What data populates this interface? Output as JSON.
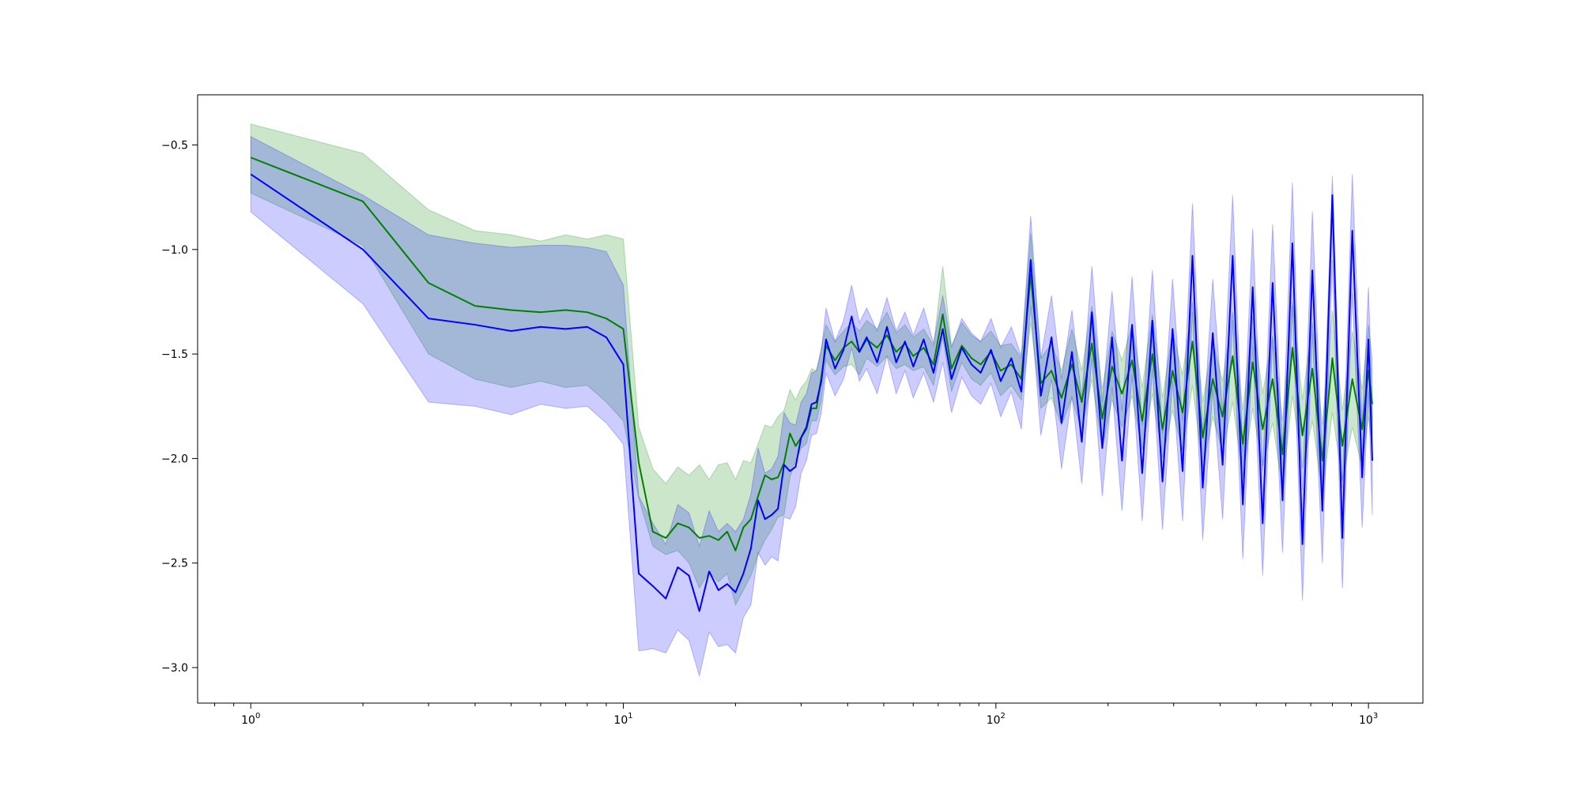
{
  "chart_data": {
    "type": "line",
    "title": "",
    "xlabel": "",
    "ylabel": "",
    "x_scale": "log",
    "xlim": [
      0.72,
      1400
    ],
    "ylim": [
      -3.17,
      -0.26
    ],
    "grid": false,
    "legend": "none",
    "x_ticks": [
      {
        "value": 1,
        "base": "10",
        "exp": "0"
      },
      {
        "value": 10,
        "base": "10",
        "exp": "1"
      },
      {
        "value": 100,
        "base": "10",
        "exp": "2"
      },
      {
        "value": 1000,
        "base": "10",
        "exp": "3"
      }
    ],
    "y_ticks": [
      {
        "value": -0.5,
        "label": "−0.5"
      },
      {
        "value": -1.0,
        "label": "−1.0"
      },
      {
        "value": -1.5,
        "label": "−1.5"
      },
      {
        "value": -2.0,
        "label": "−2.0"
      },
      {
        "value": -2.5,
        "label": "−2.5"
      },
      {
        "value": -3.0,
        "label": "−3.0"
      }
    ],
    "series": [
      {
        "color": "#008000",
        "band_color": "#008000",
        "x": [
          1,
          2,
          3,
          4,
          5,
          6,
          7,
          8,
          9,
          10,
          11,
          12,
          13,
          14,
          15,
          16,
          17,
          18,
          19,
          20,
          21,
          22,
          23,
          24,
          25,
          26,
          27,
          28,
          29,
          30,
          31,
          32,
          33,
          34,
          35,
          37,
          39,
          41,
          43,
          45,
          48,
          51,
          54,
          57,
          60,
          64,
          68,
          72,
          76,
          81,
          86,
          91,
          97,
          103,
          110,
          117,
          124,
          132,
          141,
          150,
          160,
          170,
          181,
          193,
          205,
          218,
          232,
          247,
          263,
          280,
          298,
          317,
          337,
          359,
          382,
          406,
          432,
          460,
          489,
          520,
          553,
          588,
          625,
          665,
          707,
          752,
          800,
          851,
          905,
          962,
          1000,
          1024
        ],
        "y": [
          -0.56,
          -0.77,
          -1.16,
          -1.27,
          -1.29,
          -1.3,
          -1.29,
          -1.3,
          -1.33,
          -1.38,
          -2.02,
          -2.35,
          -2.38,
          -2.31,
          -2.33,
          -2.38,
          -2.37,
          -2.39,
          -2.35,
          -2.44,
          -2.33,
          -2.29,
          -2.18,
          -2.08,
          -2.1,
          -2.09,
          -2.02,
          -1.88,
          -1.94,
          -1.9,
          -1.86,
          -1.76,
          -1.76,
          -1.61,
          -1.46,
          -1.53,
          -1.47,
          -1.44,
          -1.49,
          -1.43,
          -1.47,
          -1.41,
          -1.49,
          -1.45,
          -1.51,
          -1.47,
          -1.55,
          -1.31,
          -1.57,
          -1.46,
          -1.52,
          -1.55,
          -1.49,
          -1.58,
          -1.55,
          -1.62,
          -1.12,
          -1.64,
          -1.58,
          -1.71,
          -1.55,
          -1.73,
          -1.45,
          -1.81,
          -1.56,
          -1.69,
          -1.53,
          -1.82,
          -1.5,
          -1.86,
          -1.58,
          -1.78,
          -1.44,
          -1.9,
          -1.62,
          -1.8,
          -1.51,
          -1.93,
          -1.54,
          -1.86,
          -1.62,
          -1.98,
          -1.47,
          -1.89,
          -1.57,
          -2.01,
          -1.52,
          -1.94,
          -1.62,
          -1.86,
          -1.58,
          -1.74
        ],
        "lower": [
          -0.73,
          -0.98,
          -1.5,
          -1.62,
          -1.66,
          -1.63,
          -1.66,
          -1.65,
          -1.73,
          -1.82,
          -2.19,
          -2.42,
          -2.46,
          -2.44,
          -2.5,
          -2.62,
          -2.54,
          -2.59,
          -2.55,
          -2.7,
          -2.63,
          -2.56,
          -2.46,
          -2.39,
          -2.34,
          -2.28,
          -2.27,
          -2.09,
          -2.01,
          -1.95,
          -1.93,
          -1.82,
          -1.82,
          -1.72,
          -1.53,
          -1.6,
          -1.56,
          -1.55,
          -1.6,
          -1.52,
          -1.56,
          -1.51,
          -1.57,
          -1.55,
          -1.58,
          -1.56,
          -1.65,
          -1.42,
          -1.68,
          -1.54,
          -1.62,
          -1.65,
          -1.59,
          -1.7,
          -1.65,
          -1.72,
          -1.35,
          -1.76,
          -1.71,
          -1.84,
          -1.71,
          -1.87,
          -1.62,
          -1.95,
          -1.72,
          -1.85,
          -1.7,
          -1.96,
          -1.69,
          -2.0,
          -1.77,
          -1.96,
          -1.65,
          -2.05,
          -1.8,
          -1.97,
          -1.73,
          -2.09,
          -1.76,
          -2.04,
          -1.83,
          -2.14,
          -1.7,
          -2.05,
          -1.82,
          -2.17,
          -1.78,
          -2.11,
          -1.85,
          -2.04,
          -1.8,
          -1.95
        ],
        "upper": [
          -0.4,
          -0.54,
          -0.81,
          -0.91,
          -0.93,
          -0.96,
          -0.93,
          -0.95,
          -0.93,
          -0.95,
          -1.85,
          -2.05,
          -2.12,
          -2.04,
          -2.08,
          -2.03,
          -2.1,
          -2.03,
          -2.02,
          -2.1,
          -2.01,
          -2.02,
          -1.93,
          -1.84,
          -1.85,
          -1.8,
          -1.77,
          -1.67,
          -1.72,
          -1.66,
          -1.63,
          -1.57,
          -1.58,
          -1.47,
          -1.36,
          -1.44,
          -1.39,
          -1.35,
          -1.39,
          -1.34,
          -1.38,
          -1.3,
          -1.4,
          -1.36,
          -1.42,
          -1.38,
          -1.46,
          -1.08,
          -1.46,
          -1.35,
          -1.41,
          -1.44,
          -1.39,
          -1.46,
          -1.45,
          -1.52,
          -0.92,
          -1.52,
          -1.45,
          -1.58,
          -1.38,
          -1.58,
          -1.27,
          -1.67,
          -1.39,
          -1.53,
          -1.36,
          -1.66,
          -1.31,
          -1.71,
          -1.39,
          -1.6,
          -1.25,
          -1.73,
          -1.44,
          -1.63,
          -1.3,
          -1.77,
          -1.32,
          -1.69,
          -1.41,
          -1.82,
          -1.25,
          -1.72,
          -1.35,
          -1.84,
          -1.29,
          -1.77,
          -1.39,
          -1.67,
          -1.36,
          -1.52
        ]
      },
      {
        "color": "#0000ff",
        "band_color": "#0000ff",
        "x": [
          1,
          2,
          3,
          4,
          5,
          6,
          7,
          8,
          9,
          10,
          11,
          12,
          13,
          14,
          15,
          16,
          17,
          18,
          19,
          20,
          21,
          22,
          23,
          24,
          25,
          26,
          27,
          28,
          29,
          30,
          31,
          32,
          33,
          34,
          35,
          37,
          39,
          41,
          43,
          45,
          48,
          51,
          54,
          57,
          60,
          64,
          68,
          72,
          76,
          81,
          86,
          91,
          97,
          103,
          110,
          117,
          124,
          132,
          141,
          150,
          160,
          170,
          181,
          193,
          205,
          218,
          232,
          247,
          263,
          280,
          298,
          317,
          337,
          359,
          382,
          406,
          432,
          460,
          489,
          520,
          553,
          588,
          625,
          665,
          707,
          752,
          800,
          851,
          905,
          962,
          1000,
          1024
        ],
        "y": [
          -0.64,
          -1.0,
          -1.33,
          -1.36,
          -1.39,
          -1.37,
          -1.38,
          -1.37,
          -1.42,
          -1.55,
          -2.55,
          -2.61,
          -2.67,
          -2.52,
          -2.56,
          -2.73,
          -2.54,
          -2.63,
          -2.6,
          -2.64,
          -2.55,
          -2.43,
          -2.2,
          -2.29,
          -2.27,
          -2.24,
          -2.03,
          -2.06,
          -2.04,
          -1.9,
          -1.85,
          -1.74,
          -1.73,
          -1.63,
          -1.43,
          -1.57,
          -1.48,
          -1.32,
          -1.49,
          -1.42,
          -1.54,
          -1.37,
          -1.54,
          -1.44,
          -1.56,
          -1.43,
          -1.59,
          -1.38,
          -1.62,
          -1.47,
          -1.55,
          -1.59,
          -1.48,
          -1.63,
          -1.52,
          -1.68,
          -1.05,
          -1.7,
          -1.42,
          -1.83,
          -1.49,
          -1.92,
          -1.3,
          -1.95,
          -1.42,
          -2.01,
          -1.36,
          -2.07,
          -1.34,
          -2.11,
          -1.38,
          -2.06,
          -1.03,
          -2.14,
          -1.4,
          -2.03,
          -1.03,
          -2.22,
          -1.18,
          -2.31,
          -1.16,
          -2.2,
          -0.97,
          -2.41,
          -1.1,
          -2.25,
          -0.74,
          -2.38,
          -0.91,
          -2.09,
          -1.43,
          -2.01
        ],
        "lower": [
          -0.82,
          -1.26,
          -1.73,
          -1.75,
          -1.79,
          -1.74,
          -1.76,
          -1.75,
          -1.83,
          -1.93,
          -2.92,
          -2.91,
          -2.93,
          -2.82,
          -2.87,
          -3.04,
          -2.83,
          -2.9,
          -2.89,
          -2.93,
          -2.76,
          -2.7,
          -2.45,
          -2.51,
          -2.47,
          -2.49,
          -2.28,
          -2.29,
          -2.23,
          -2.07,
          -2.01,
          -1.89,
          -1.88,
          -1.78,
          -1.59,
          -1.7,
          -1.62,
          -1.47,
          -1.63,
          -1.57,
          -1.69,
          -1.51,
          -1.69,
          -1.58,
          -1.71,
          -1.59,
          -1.73,
          -1.54,
          -1.78,
          -1.61,
          -1.7,
          -1.74,
          -1.64,
          -1.8,
          -1.68,
          -1.86,
          -1.27,
          -1.89,
          -1.62,
          -2.05,
          -1.7,
          -2.12,
          -1.52,
          -2.18,
          -1.66,
          -2.25,
          -1.6,
          -2.3,
          -1.57,
          -2.34,
          -1.63,
          -2.3,
          -1.3,
          -2.39,
          -1.67,
          -2.29,
          -1.34,
          -2.48,
          -1.46,
          -2.56,
          -1.43,
          -2.45,
          -1.27,
          -2.68,
          -1.4,
          -2.5,
          -1.05,
          -2.62,
          -1.21,
          -2.33,
          -1.68,
          -2.27
        ],
        "upper": [
          -0.46,
          -0.74,
          -0.93,
          -0.97,
          -0.99,
          -0.98,
          -0.98,
          -0.99,
          -1.01,
          -1.17,
          -2.18,
          -2.31,
          -2.41,
          -2.22,
          -2.26,
          -2.42,
          -2.25,
          -2.35,
          -2.31,
          -2.35,
          -2.29,
          -2.17,
          -1.95,
          -2.07,
          -2.05,
          -1.99,
          -1.78,
          -1.83,
          -1.84,
          -1.73,
          -1.69,
          -1.59,
          -1.58,
          -1.48,
          -1.28,
          -1.44,
          -1.34,
          -1.17,
          -1.35,
          -1.28,
          -1.39,
          -1.23,
          -1.39,
          -1.3,
          -1.41,
          -1.28,
          -1.45,
          -1.22,
          -1.47,
          -1.33,
          -1.4,
          -1.44,
          -1.33,
          -1.47,
          -1.37,
          -1.51,
          -0.84,
          -1.52,
          -1.22,
          -1.62,
          -1.29,
          -1.71,
          -1.08,
          -1.73,
          -1.2,
          -1.77,
          -1.13,
          -1.84,
          -1.1,
          -1.88,
          -1.14,
          -1.82,
          -0.78,
          -1.9,
          -1.14,
          -1.78,
          -0.74,
          -1.97,
          -0.9,
          -2.06,
          -0.88,
          -1.95,
          -0.68,
          -2.15,
          -0.82,
          -2.0,
          -0.65,
          -2.14,
          -0.64,
          -1.84,
          -1.18,
          -1.76
        ]
      }
    ]
  }
}
